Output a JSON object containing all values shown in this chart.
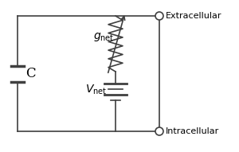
{
  "bg_color": "#ffffff",
  "line_color": "#404040",
  "text_color": "#000000",
  "extracellular_label": "Extracellular",
  "intracellular_label": "Intracellular",
  "capacitor_label": "C",
  "resistor_label": "g",
  "resistor_sub": "net",
  "battery_label": "V",
  "battery_sub": "net",
  "fig_width": 3.0,
  "fig_height": 1.91,
  "dpi": 100
}
